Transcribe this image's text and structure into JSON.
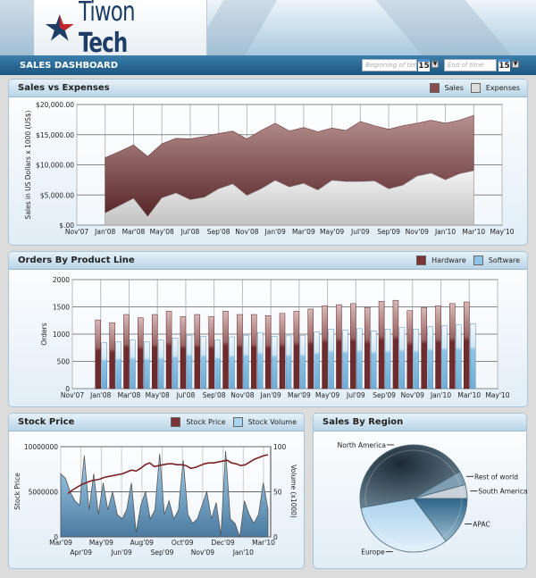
{
  "header": {
    "brand": "Tiwon Tech",
    "brand_part1": "Tiwon",
    "brand_part2": "Tech",
    "dashboard_title": "SALES DASHBOARD",
    "start_date_placeholder": "Beginning of tim",
    "end_date_placeholder": "End of time",
    "calendar_day": "15"
  },
  "colors": {
    "sales": "#8a4d4e",
    "expenses": "#d4d4d4",
    "hardware": "#7a3436",
    "software": "#8ec4e6",
    "brand_blue": "#1d3d66",
    "brand_red": "#c0272d"
  },
  "chart_data": [
    {
      "id": "sales",
      "type": "area",
      "title": "Sales vs Expenses",
      "ylabel": "Sales in US Dollars x 1000 (US$)",
      "ylim": [
        0,
        20000
      ],
      "yticks": [
        "$.00",
        "$5,000.00",
        "$10,000.00",
        "$15,000.00",
        "$20,000.00"
      ],
      "xticks": [
        "Nov'07",
        "Jan'08",
        "Mar'08",
        "May'08",
        "Jul'08",
        "Sep'08",
        "Nov'08",
        "Jan'09",
        "Mar'09",
        "May'09",
        "Jul'09",
        "Sep'09",
        "Nov'09",
        "Jan'10",
        "Mar'10",
        "May'10"
      ],
      "legend": [
        "Sales",
        "Expenses"
      ],
      "legend_position": "top-right",
      "x_start": "Jan'08",
      "x_end": "Mar'10",
      "series": [
        {
          "name": "Sales",
          "values": [
            11200,
            12200,
            13300,
            11400,
            13500,
            14400,
            14300,
            14700,
            15200,
            15600,
            14300,
            15700,
            16900,
            15600,
            16200,
            15500,
            16100,
            15700,
            17200,
            16500,
            15900,
            16500,
            16900,
            17400,
            16900,
            17400,
            18200
          ]
        },
        {
          "name": "Expenses",
          "values": [
            2000,
            3200,
            4400,
            1400,
            4500,
            5300,
            4200,
            4600,
            6000,
            6800,
            4900,
            6000,
            7400,
            6300,
            6900,
            5800,
            7400,
            7200,
            7200,
            7300,
            6000,
            6600,
            8100,
            8600,
            7500,
            8500,
            9000
          ]
        }
      ]
    },
    {
      "id": "orders",
      "type": "bar",
      "title": "Orders By Product Line",
      "ylabel": "Orders",
      "ylim": [
        0,
        2000
      ],
      "yticks": [
        "0",
        "500",
        "1000",
        "1500",
        "2000"
      ],
      "xticks": [
        "Nov'07",
        "Jan'08",
        "Mar'08",
        "May'08",
        "Jul'08",
        "Sep'08",
        "Nov'08",
        "Jan'09",
        "Mar'09",
        "May'09",
        "Jul'09",
        "Sep'09",
        "Nov'09",
        "Jan'10",
        "Mar'10",
        "May'10"
      ],
      "legend": [
        "Hardware",
        "Software"
      ],
      "legend_position": "top-right",
      "series": [
        {
          "name": "Hardware",
          "values": [
            1260,
            1210,
            1360,
            1300,
            1360,
            1420,
            1320,
            1360,
            1320,
            1420,
            1360,
            1360,
            1340,
            1380,
            1420,
            1460,
            1520,
            1540,
            1560,
            1490,
            1600,
            1620,
            1430,
            1490,
            1520,
            1560,
            1590
          ]
        },
        {
          "name": "Software",
          "values": [
            840,
            860,
            890,
            860,
            890,
            930,
            980,
            960,
            890,
            950,
            980,
            1030,
            960,
            970,
            980,
            1040,
            1090,
            1070,
            1100,
            1060,
            1090,
            1120,
            1090,
            1140,
            1160,
            1170,
            1190
          ]
        }
      ]
    },
    {
      "id": "stock",
      "type": "line",
      "title": "Stock Price",
      "ylabel": "Stock Price",
      "y2label": "Volume (x1000)",
      "ylim": [
        0,
        10000000
      ],
      "y2lim": [
        0,
        100
      ],
      "yticks": [
        "0",
        "5000000",
        "10000000"
      ],
      "y2ticks": [
        "0",
        "50",
        "100"
      ],
      "xticks_top": [
        "Mar'09",
        "May'09",
        "Aug'09",
        "Oct'09",
        "Dec'09",
        "Mar'10"
      ],
      "xticks_bottom": [
        "Apr'09",
        "Jun'09",
        "Sep'09",
        "Nov'09",
        "Jan'10"
      ],
      "legend": [
        "Stock Price",
        "Stock Volume"
      ],
      "legend_position": "top-right",
      "series": [
        {
          "name": "Stock Price",
          "values": [
            48,
            52,
            55,
            58,
            60,
            62,
            63,
            64,
            66,
            67,
            68,
            69,
            70,
            72,
            74,
            73,
            76,
            80,
            82,
            78,
            79,
            80,
            81,
            81,
            80,
            80,
            79,
            76,
            77,
            79,
            81,
            82,
            82,
            83,
            84,
            85,
            82,
            81,
            79,
            80,
            83,
            86,
            88,
            90,
            91
          ]
        },
        {
          "name": "Stock Volume",
          "values": [
            7000000,
            6500000,
            5000000,
            4000000,
            3500000,
            9000000,
            3000000,
            7000000,
            2500000,
            6000000,
            3000000,
            5000000,
            2500000,
            2000000,
            3000000,
            6000000,
            500000,
            3500000,
            5000000,
            2000000,
            3000000,
            9200000,
            2500000,
            4000000,
            2000000,
            3000000,
            8500000,
            2500000,
            1500000,
            2000000,
            3500000,
            5000000,
            2000000,
            3800000,
            200000,
            9500000,
            2000000,
            1500000,
            0,
            4000000,
            2500000,
            1500000,
            2500000,
            6000000,
            3000000
          ]
        }
      ]
    },
    {
      "id": "region",
      "type": "pie",
      "title": "Sales By Region",
      "slices": [
        {
          "label": "South America",
          "value": 4.2
        },
        {
          "label": "Rest of world",
          "value": 4.2
        },
        {
          "label": "North America",
          "value": 44.4
        },
        {
          "label": "Europe",
          "value": 32.5
        },
        {
          "label": "APAC",
          "value": 14.7
        }
      ]
    }
  ]
}
